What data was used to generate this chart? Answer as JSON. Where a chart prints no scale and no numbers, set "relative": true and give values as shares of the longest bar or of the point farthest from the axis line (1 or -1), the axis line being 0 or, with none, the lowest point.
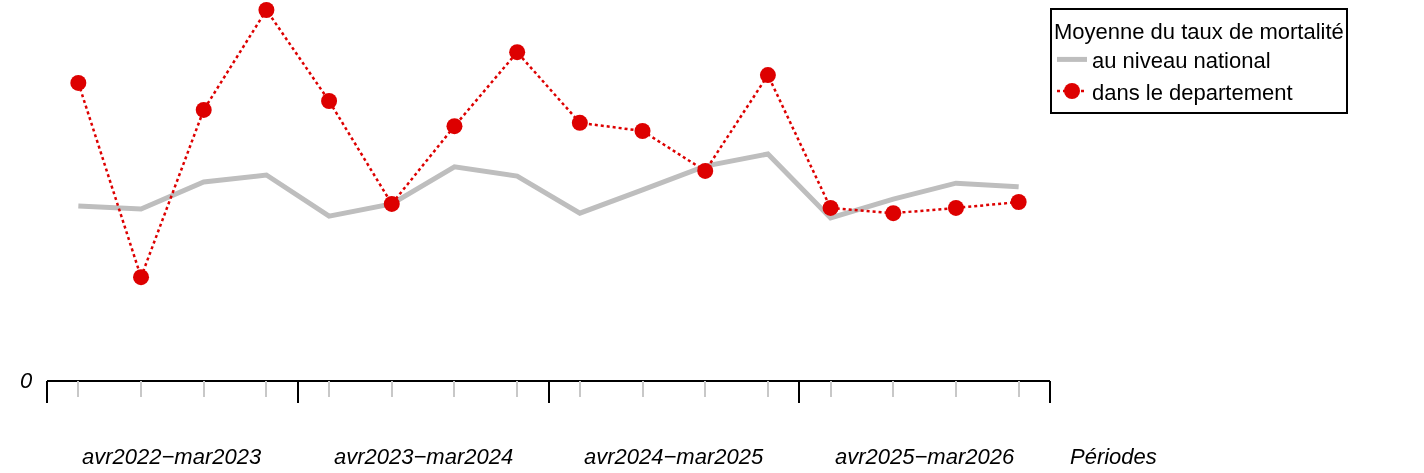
{
  "chart_data": {
    "type": "line",
    "relative": true,
    "xlabel": "Périodes",
    "legend_title": "Moyenne du taux de mortalité",
    "legend": "top right",
    "categories": [
      null,
      null,
      null,
      null,
      null,
      null,
      null,
      null,
      null,
      null,
      null,
      null,
      null,
      null,
      null,
      null
    ],
    "annotations": [
      "avr2022−mar2023",
      "avr2023−mar2024",
      "avr2024−mar2025",
      "avr2025−mar2026",
      "0"
    ],
    "series": [
      {
        "name": "au niveau national",
        "color": "#bebebe",
        "line_style": "solid",
        "marker": "none",
        "values": [
          0.47,
          0.462,
          0.535,
          0.554,
          0.443,
          0.476,
          0.576,
          0.551,
          0.451,
          0.514,
          0.578,
          0.611,
          0.438,
          0.489,
          0.532,
          0.522
        ]
      },
      {
        "name": "dans le departement",
        "color": "#dd0000",
        "line_style": "dotted",
        "marker": "circle",
        "values": [
          0.803,
          0.278,
          0.73,
          1,
          0.754,
          0.476,
          0.686,
          0.886,
          0.695,
          0.673,
          0.565,
          0.824,
          0.465,
          0.451,
          0.465,
          0.481
        ]
      }
    ]
  }
}
